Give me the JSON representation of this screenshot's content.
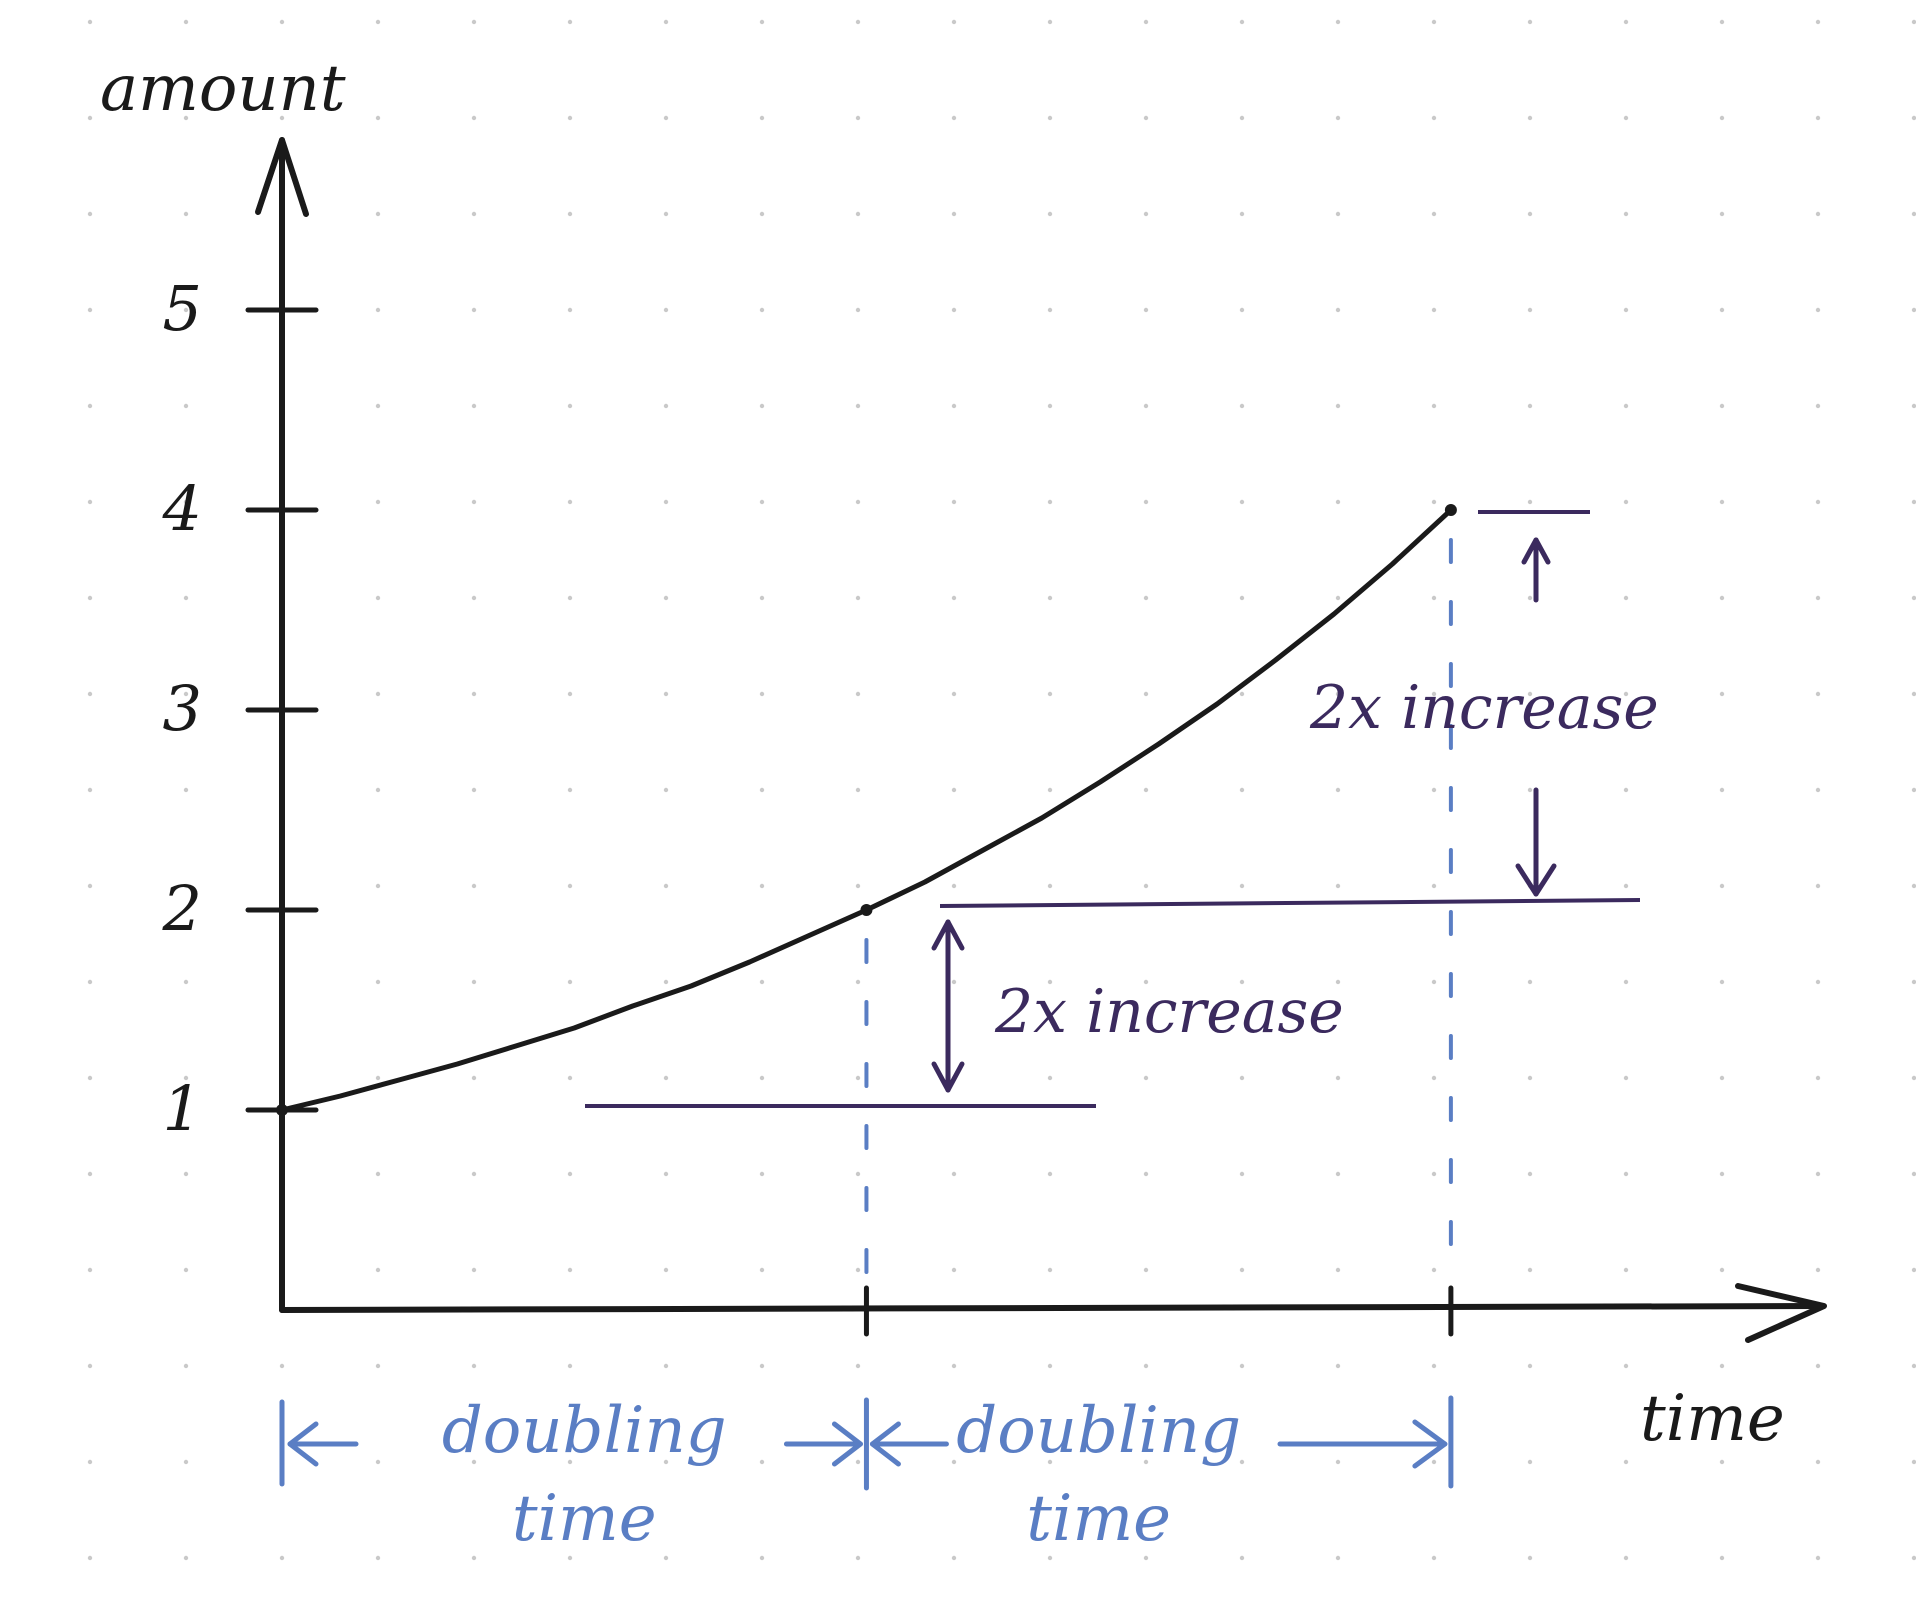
{
  "chart_data": {
    "type": "line",
    "style": "hand-drawn on dotted paper",
    "xlabel": "time",
    "ylabel": "amount",
    "x_ticks": [
      0,
      1,
      2
    ],
    "x_tick_labels": [
      "",
      "",
      ""
    ],
    "y_ticks": [
      1,
      2,
      3,
      4,
      5
    ],
    "y_tick_labels": [
      "1",
      "2",
      "3",
      "4",
      "5"
    ],
    "xlim": [
      0,
      2.7
    ],
    "ylim": [
      0,
      5.9
    ],
    "grid": "dot grid",
    "series": [
      {
        "x": [
          0,
          0.1,
          0.2,
          0.3,
          0.4,
          0.5,
          0.6,
          0.7,
          0.8,
          0.9,
          1.0,
          1.1,
          1.2,
          1.3,
          1.4,
          1.5,
          1.6,
          1.7,
          1.8,
          1.9,
          2.0
        ],
        "values": [
          1.0,
          1.07,
          1.15,
          1.23,
          1.32,
          1.41,
          1.52,
          1.62,
          1.74,
          1.87,
          2.0,
          2.14,
          2.3,
          2.46,
          2.64,
          2.83,
          3.03,
          3.25,
          3.48,
          3.73,
          4.0
        ],
        "color": "#1a1a1a"
      }
    ],
    "annotations": [
      {
        "text": "2x increase",
        "from_y": 1,
        "to_y": 2,
        "color": "#3b2a5e"
      },
      {
        "text": "2x increase",
        "from_y": 2,
        "to_y": 4,
        "color": "#3b2a5e"
      },
      {
        "text": "doubling time",
        "from_x": 0,
        "to_x": 1,
        "color": "#5a7ec4"
      },
      {
        "text": "doubling time",
        "from_x": 1,
        "to_x": 2,
        "color": "#5a7ec4"
      }
    ],
    "colors": {
      "ink": "#1a1a1a",
      "purple": "#3b2a5e",
      "blue": "#5a7ec4",
      "dots": "#c9c9c9"
    }
  }
}
